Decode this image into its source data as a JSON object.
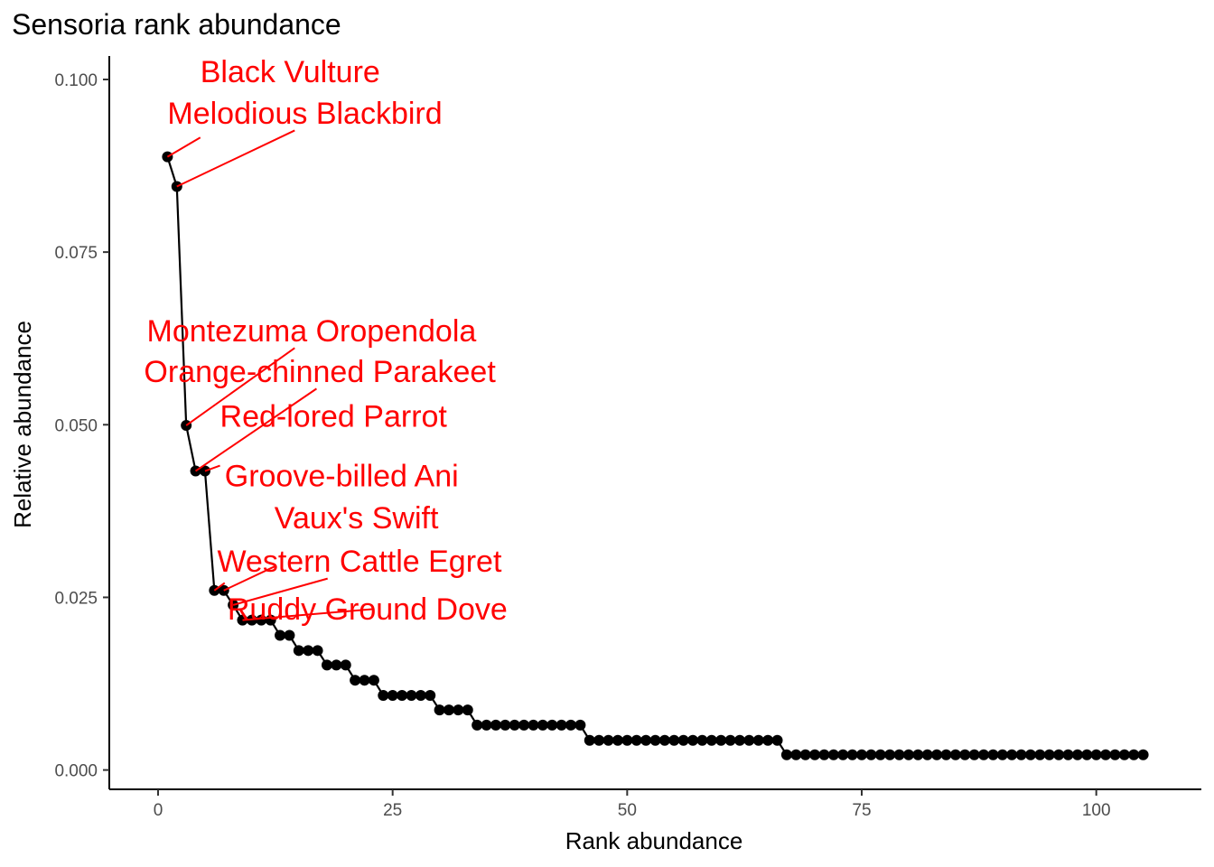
{
  "chart_data": {
    "type": "scatter",
    "title": "Sensoria rank abundance",
    "xlabel": "Rank abundance",
    "ylabel": "Relative abundance",
    "xlim": [
      -5.2,
      111.2
    ],
    "ylim": [
      -0.0028,
      0.1034
    ],
    "x_ticks": [
      0,
      25,
      50,
      75,
      100
    ],
    "y_ticks": [
      0.0,
      0.025,
      0.05,
      0.075,
      0.1
    ],
    "x_tick_labels": [
      "0",
      "25",
      "50",
      "75",
      "100"
    ],
    "y_tick_labels": [
      "0.000",
      "0.025",
      "0.050",
      "0.075",
      "0.100"
    ],
    "grid": false,
    "connect_points": true,
    "point_color": "#000000",
    "line_color": "#000000",
    "annotation_color": "#ff0000",
    "series": [
      {
        "x": [
          1,
          2,
          3,
          4,
          5,
          6,
          7,
          8,
          9,
          10,
          11,
          12,
          13,
          14,
          15,
          16,
          17,
          18,
          19,
          20,
          21,
          22,
          23,
          24,
          25,
          26,
          27,
          28,
          29,
          30,
          31,
          32,
          33,
          34,
          35,
          36,
          37,
          38,
          39,
          40,
          41,
          42,
          43,
          44,
          45,
          46,
          47,
          48,
          49,
          50,
          51,
          52,
          53,
          54,
          55,
          56,
          57,
          58,
          59,
          60,
          61,
          62,
          63,
          64,
          65,
          66,
          67,
          68,
          69,
          70,
          71,
          72,
          73,
          74,
          75,
          76,
          77,
          78,
          79,
          80,
          81,
          82,
          83,
          84,
          85,
          86,
          87,
          88,
          89,
          90,
          91,
          92,
          93,
          94,
          95,
          96,
          97,
          98,
          99,
          100,
          101,
          102,
          103,
          104,
          105
        ],
        "y": [
          0.0888,
          0.0845,
          0.0499,
          0.0433,
          0.0433,
          0.026,
          0.026,
          0.0239,
          0.0217,
          0.0217,
          0.0217,
          0.0217,
          0.0195,
          0.0195,
          0.0173,
          0.0173,
          0.0173,
          0.0152,
          0.0152,
          0.0152,
          0.013,
          0.013,
          0.013,
          0.0108,
          0.0108,
          0.0108,
          0.0108,
          0.0108,
          0.0108,
          0.0087,
          0.0087,
          0.0087,
          0.0087,
          0.0065,
          0.0065,
          0.0065,
          0.0065,
          0.0065,
          0.0065,
          0.0065,
          0.0065,
          0.0065,
          0.0065,
          0.0065,
          0.0065,
          0.0043,
          0.0043,
          0.0043,
          0.0043,
          0.0043,
          0.0043,
          0.0043,
          0.0043,
          0.0043,
          0.0043,
          0.0043,
          0.0043,
          0.0043,
          0.0043,
          0.0043,
          0.0043,
          0.0043,
          0.0043,
          0.0043,
          0.0043,
          0.0043,
          0.0022,
          0.0022,
          0.0022,
          0.0022,
          0.0022,
          0.0022,
          0.0022,
          0.0022,
          0.0022,
          0.0022,
          0.0022,
          0.0022,
          0.0022,
          0.0022,
          0.0022,
          0.0022,
          0.0022,
          0.0022,
          0.0022,
          0.0022,
          0.0022,
          0.0022,
          0.0022,
          0.0022,
          0.0022,
          0.0022,
          0.0022,
          0.0022,
          0.0022,
          0.0022,
          0.0022,
          0.0022,
          0.0022,
          0.0022,
          0.0022,
          0.0022,
          0.0022,
          0.0022,
          0.0022
        ]
      }
    ],
    "annotations": [
      {
        "text": "Black Vulture",
        "point": [
          1,
          0.0888
        ],
        "label": [
          4.5,
          0.0996
        ],
        "anchor": "start"
      },
      {
        "text": "Melodious Blackbird",
        "point": [
          2,
          0.0845
        ],
        "label": [
          1,
          0.0936
        ],
        "anchor": "start"
      },
      {
        "text": "Montezuma Oropendola",
        "point": [
          3,
          0.0499
        ],
        "label": [
          -1.2,
          0.0621
        ],
        "anchor": "start"
      },
      {
        "text": "Orange-chinned Parakeet",
        "point": [
          4,
          0.0433
        ],
        "label": [
          -1.5,
          0.0562
        ],
        "anchor": "start"
      },
      {
        "text": "Red-lored Parrot",
        "point": [
          5,
          0.0433
        ],
        "label": [
          6.6,
          0.0497
        ],
        "anchor": "start"
      },
      {
        "text": "Groove-billed Ani",
        "point": [
          6,
          0.026
        ],
        "label": [
          7.1,
          0.0411
        ],
        "anchor": "start"
      },
      {
        "text": "Vaux's Swift",
        "point": [
          7,
          0.026
        ],
        "label": [
          12.4,
          0.035
        ],
        "anchor": "start"
      },
      {
        "text": "Western Cattle Egret",
        "point": [
          8,
          0.0239
        ],
        "label": [
          6.3,
          0.0287
        ],
        "anchor": "start"
      },
      {
        "text": "Ruddy Ground Dove",
        "point": [
          9,
          0.0217
        ],
        "label": [
          7.4,
          0.0218
        ],
        "anchor": "start"
      }
    ]
  }
}
